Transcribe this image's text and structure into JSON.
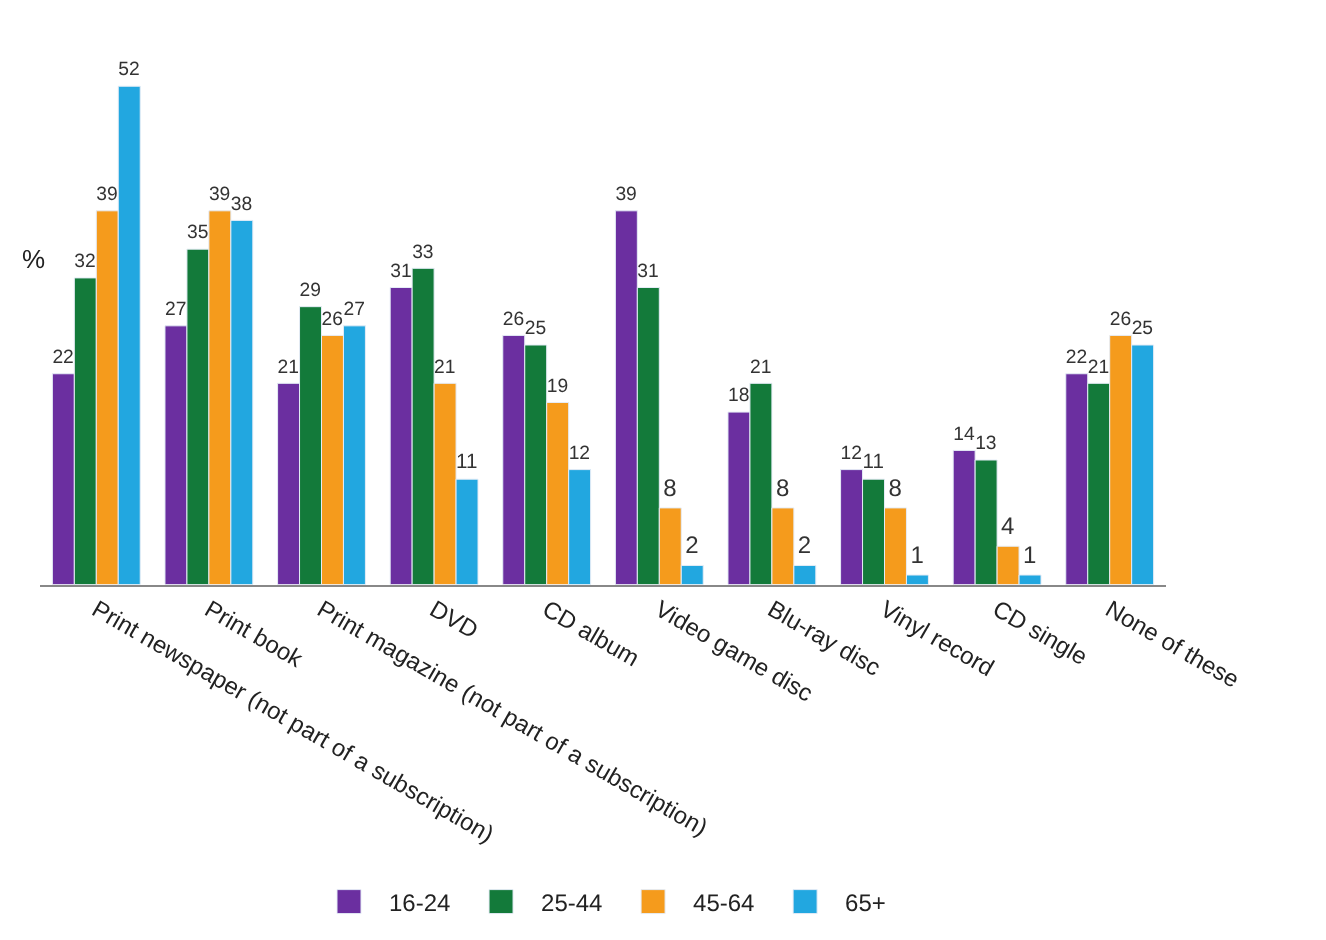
{
  "chart_data": {
    "type": "bar",
    "ylabel": "%",
    "categories": [
      "Print newspaper (not part of a subscription)",
      "Print book",
      "Print magazine (not part of a subscription)",
      "DVD",
      "CD album",
      "Video game disc",
      "Blu-ray disc",
      "Vinyl record",
      "CD single",
      "None of these"
    ],
    "series": [
      {
        "name": "16-24",
        "color": "#6b2fa0",
        "values": [
          22,
          27,
          21,
          31,
          26,
          39,
          18,
          12,
          14,
          22
        ]
      },
      {
        "name": "25-44",
        "color": "#137a3a",
        "values": [
          32,
          35,
          29,
          33,
          25,
          31,
          21,
          11,
          13,
          21
        ]
      },
      {
        "name": "45-64",
        "color": "#f59b1c",
        "values": [
          39,
          39,
          26,
          21,
          19,
          8,
          8,
          8,
          4,
          26
        ]
      },
      {
        "name": "65+",
        "color": "#22a7e0",
        "values": [
          52,
          38,
          27,
          11,
          12,
          2,
          2,
          1,
          1,
          25
        ]
      }
    ],
    "data_labels": true,
    "legend": "bottom",
    "tick_labels": "x"
  }
}
